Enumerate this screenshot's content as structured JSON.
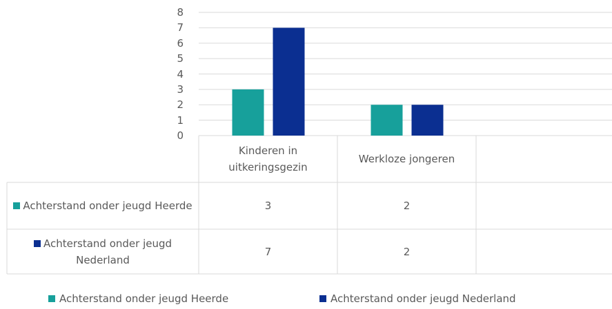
{
  "chart_data": {
    "type": "bar",
    "categories": [
      "Kinderen in uitkeringsgezin",
      "Werkloze jongeren",
      null
    ],
    "series": [
      {
        "name": "Achterstand onder jeugd Heerde",
        "color": "#17a09b",
        "values": [
          3,
          2,
          null
        ]
      },
      {
        "name": "Achterstand onder jeugd Nederland",
        "color": "#0b2f91",
        "values": [
          7,
          2,
          null
        ]
      }
    ],
    "ylim": [
      0,
      8
    ],
    "yticks": [
      0,
      1,
      2,
      3,
      4,
      5,
      6,
      7,
      8
    ],
    "grid": true,
    "legend": "bottom",
    "data_table": true
  }
}
